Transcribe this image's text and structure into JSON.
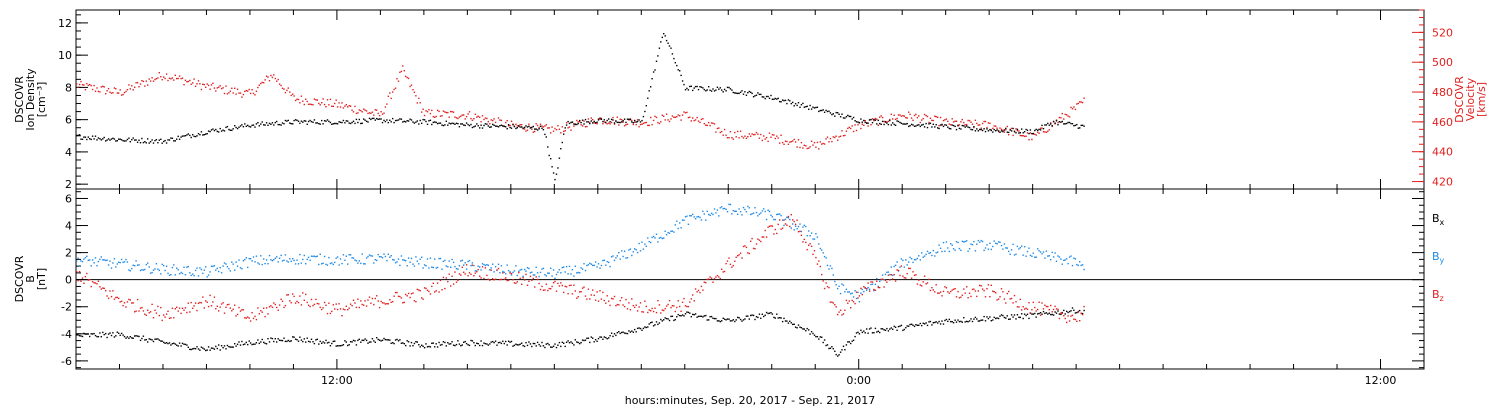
{
  "colors": {
    "black": "#000000",
    "red": "#e02020",
    "blue": "#1e8ae6"
  },
  "x_axis": {
    "title": "hours:minutes, Sep. 20, 2017 - Sep. 21, 2017",
    "range": [
      "2017-09-20 06:00",
      "2017-09-21 13:00"
    ],
    "tick_labels": [
      "12:00",
      "0:00",
      "12:00"
    ]
  },
  "chart_data": [
    {
      "type": "scatter",
      "panel": "top",
      "ylabel_left": [
        "DSCOVR",
        "Ion Density",
        "[cm⁻³]"
      ],
      "ylabel_right": [
        "DSCOVR",
        "Velocity",
        "[km/s]"
      ],
      "ylim_left": [
        1.7,
        12.8
      ],
      "ylim_right": [
        415,
        535
      ],
      "yticks_left": [
        "2",
        "4",
        "6",
        "8",
        "10",
        "12"
      ],
      "yticks_right": [
        "420",
        "440",
        "460",
        "480",
        "500",
        "520"
      ],
      "data_end": "2017-09-21 05:10",
      "series": [
        {
          "name": "Ion Density",
          "color": "#000000",
          "axis": "left",
          "points": [
            [
              "2017-09-20 06:00",
              5.0
            ],
            [
              "2017-09-20 07:00",
              4.8
            ],
            [
              "2017-09-20 08:00",
              4.7
            ],
            [
              "2017-09-20 09:00",
              5.3
            ],
            [
              "2017-09-20 10:00",
              5.7
            ],
            [
              "2017-09-20 11:00",
              5.9
            ],
            [
              "2017-09-20 12:00",
              5.9
            ],
            [
              "2017-09-20 13:00",
              6.0
            ],
            [
              "2017-09-20 14:00",
              5.9
            ],
            [
              "2017-09-20 15:00",
              5.7
            ],
            [
              "2017-09-20 16:00",
              5.6
            ],
            [
              "2017-09-20 16:45",
              5.5
            ],
            [
              "2017-09-20 17:00",
              2.2
            ],
            [
              "2017-09-20 17:15",
              5.8
            ],
            [
              "2017-09-20 18:00",
              6.0
            ],
            [
              "2017-09-20 19:00",
              5.9
            ],
            [
              "2017-09-20 19:30",
              11.5
            ],
            [
              "2017-09-20 20:00",
              8.0
            ],
            [
              "2017-09-20 21:00",
              7.9
            ],
            [
              "2017-09-20 22:00",
              7.4
            ],
            [
              "2017-09-20 23:00",
              6.7
            ],
            [
              "2017-09-21 00:00",
              6.0
            ],
            [
              "2017-09-21 01:00",
              5.8
            ],
            [
              "2017-09-21 02:00",
              5.6
            ],
            [
              "2017-09-21 03:00",
              5.4
            ],
            [
              "2017-09-21 04:00",
              5.3
            ],
            [
              "2017-09-21 04:30",
              5.9
            ],
            [
              "2017-09-21 05:10",
              5.6
            ]
          ]
        },
        {
          "name": "Velocity",
          "color": "#e02020",
          "axis": "right",
          "points": [
            [
              "2017-09-20 06:00",
              485
            ],
            [
              "2017-09-20 07:00",
              480
            ],
            [
              "2017-09-20 08:00",
              492
            ],
            [
              "2017-09-20 09:00",
              484
            ],
            [
              "2017-09-20 10:00",
              479
            ],
            [
              "2017-09-20 10:30",
              492
            ],
            [
              "2017-09-20 11:00",
              476
            ],
            [
              "2017-09-20 12:00",
              472
            ],
            [
              "2017-09-20 13:00",
              465
            ],
            [
              "2017-09-20 13:30",
              495
            ],
            [
              "2017-09-20 14:00",
              466
            ],
            [
              "2017-09-20 15:00",
              465
            ],
            [
              "2017-09-20 16:00",
              458
            ],
            [
              "2017-09-20 17:00",
              455
            ],
            [
              "2017-09-20 18:00",
              462
            ],
            [
              "2017-09-20 19:00",
              460
            ],
            [
              "2017-09-20 20:00",
              465
            ],
            [
              "2017-09-20 21:00",
              452
            ],
            [
              "2017-09-20 22:00",
              450
            ],
            [
              "2017-09-20 23:00",
              444
            ],
            [
              "2017-09-21 00:00",
              458
            ],
            [
              "2017-09-21 01:00",
              465
            ],
            [
              "2017-09-21 02:00",
              460
            ],
            [
              "2017-09-21 03:00",
              458
            ],
            [
              "2017-09-21 04:00",
              450
            ],
            [
              "2017-09-21 05:00",
              470
            ],
            [
              "2017-09-21 05:10",
              474
            ]
          ]
        }
      ]
    },
    {
      "type": "scatter",
      "panel": "bottom",
      "ylabel_left": [
        "DSCOVR",
        "B",
        "[nT]"
      ],
      "ylim": [
        -6.6,
        6.7
      ],
      "yticks": [
        "-6",
        "-4",
        "-2",
        "0",
        "2",
        "4",
        "6"
      ],
      "zero_line": true,
      "legend_position": "right",
      "data_end": "2017-09-21 05:10",
      "series": [
        {
          "name": "Bx",
          "label_main": "B",
          "label_sub": "x",
          "color": "#000000",
          "points": [
            [
              "2017-09-20 06:00",
              -4.1
            ],
            [
              "2017-09-20 07:00",
              -4.0
            ],
            [
              "2017-09-20 08:00",
              -4.6
            ],
            [
              "2017-09-20 09:00",
              -5.1
            ],
            [
              "2017-09-20 10:00",
              -4.6
            ],
            [
              "2017-09-20 11:00",
              -4.3
            ],
            [
              "2017-09-20 12:00",
              -4.7
            ],
            [
              "2017-09-20 13:00",
              -4.4
            ],
            [
              "2017-09-20 14:00",
              -4.8
            ],
            [
              "2017-09-20 15:00",
              -4.6
            ],
            [
              "2017-09-20 16:00",
              -4.7
            ],
            [
              "2017-09-20 17:00",
              -4.8
            ],
            [
              "2017-09-20 18:00",
              -4.3
            ],
            [
              "2017-09-20 19:00",
              -3.5
            ],
            [
              "2017-09-20 20:00",
              -2.5
            ],
            [
              "2017-09-20 21:00",
              -3.0
            ],
            [
              "2017-09-20 22:00",
              -2.5
            ],
            [
              "2017-09-20 23:00",
              -4.0
            ],
            [
              "2017-09-20 23:30",
              -5.5
            ],
            [
              "2017-09-21 00:00",
              -3.8
            ],
            [
              "2017-09-21 01:00",
              -3.5
            ],
            [
              "2017-09-21 02:00",
              -3.0
            ],
            [
              "2017-09-21 03:00",
              -2.8
            ],
            [
              "2017-09-21 04:00",
              -2.6
            ],
            [
              "2017-09-21 05:00",
              -2.2
            ],
            [
              "2017-09-21 05:10",
              -2.4
            ]
          ]
        },
        {
          "name": "By",
          "label_main": "B",
          "label_sub": "y",
          "color": "#1e8ae6",
          "points": [
            [
              "2017-09-20 06:00",
              1.5
            ],
            [
              "2017-09-20 07:00",
              1.2
            ],
            [
              "2017-09-20 08:00",
              0.8
            ],
            [
              "2017-09-20 09:00",
              0.6
            ],
            [
              "2017-09-20 10:00",
              1.4
            ],
            [
              "2017-09-20 11:00",
              1.6
            ],
            [
              "2017-09-20 12:00",
              1.5
            ],
            [
              "2017-09-20 13:00",
              1.6
            ],
            [
              "2017-09-20 14:00",
              1.3
            ],
            [
              "2017-09-20 15:00",
              1.1
            ],
            [
              "2017-09-20 16:00",
              0.7
            ],
            [
              "2017-09-20 17:00",
              0.5
            ],
            [
              "2017-09-20 18:00",
              1.0
            ],
            [
              "2017-09-20 19:00",
              2.5
            ],
            [
              "2017-09-20 20:00",
              4.4
            ],
            [
              "2017-09-20 21:00",
              5.3
            ],
            [
              "2017-09-20 22:00",
              4.8
            ],
            [
              "2017-09-20 23:00",
              3.3
            ],
            [
              "2017-09-20 23:30",
              -0.5
            ],
            [
              "2017-09-21 00:00",
              -1.2
            ],
            [
              "2017-09-21 01:00",
              1.3
            ],
            [
              "2017-09-21 02:00",
              2.5
            ],
            [
              "2017-09-21 03:00",
              2.6
            ],
            [
              "2017-09-21 04:00",
              2.0
            ],
            [
              "2017-09-21 05:00",
              1.3
            ],
            [
              "2017-09-21 05:10",
              0.8
            ]
          ]
        },
        {
          "name": "Bz",
          "label_main": "B",
          "label_sub": "z",
          "color": "#e02020",
          "points": [
            [
              "2017-09-20 06:00",
              0.5
            ],
            [
              "2017-09-20 07:00",
              -1.5
            ],
            [
              "2017-09-20 08:00",
              -2.5
            ],
            [
              "2017-09-20 09:00",
              -1.5
            ],
            [
              "2017-09-20 10:00",
              -2.8
            ],
            [
              "2017-09-20 11:00",
              -1.2
            ],
            [
              "2017-09-20 12:00",
              -2.2
            ],
            [
              "2017-09-20 13:00",
              -1.5
            ],
            [
              "2017-09-20 14:00",
              -1.0
            ],
            [
              "2017-09-20 15:00",
              0.8
            ],
            [
              "2017-09-20 16:00",
              0.2
            ],
            [
              "2017-09-20 17:00",
              -0.5
            ],
            [
              "2017-09-20 18:00",
              -1.2
            ],
            [
              "2017-09-20 19:00",
              -2.0
            ],
            [
              "2017-09-20 20:00",
              -1.8
            ],
            [
              "2017-09-20 21:00",
              1.2
            ],
            [
              "2017-09-20 22:00",
              3.8
            ],
            [
              "2017-09-20 22:30",
              4.5
            ],
            [
              "2017-09-20 23:00",
              1.5
            ],
            [
              "2017-09-20 23:30",
              -2.5
            ],
            [
              "2017-09-21 00:00",
              -1.0
            ],
            [
              "2017-09-21 01:00",
              0.7
            ],
            [
              "2017-09-21 02:00",
              -1.0
            ],
            [
              "2017-09-21 03:00",
              -0.8
            ],
            [
              "2017-09-21 04:00",
              -2.0
            ],
            [
              "2017-09-21 05:00",
              -2.8
            ],
            [
              "2017-09-21 05:10",
              -2.2
            ]
          ]
        }
      ]
    }
  ]
}
